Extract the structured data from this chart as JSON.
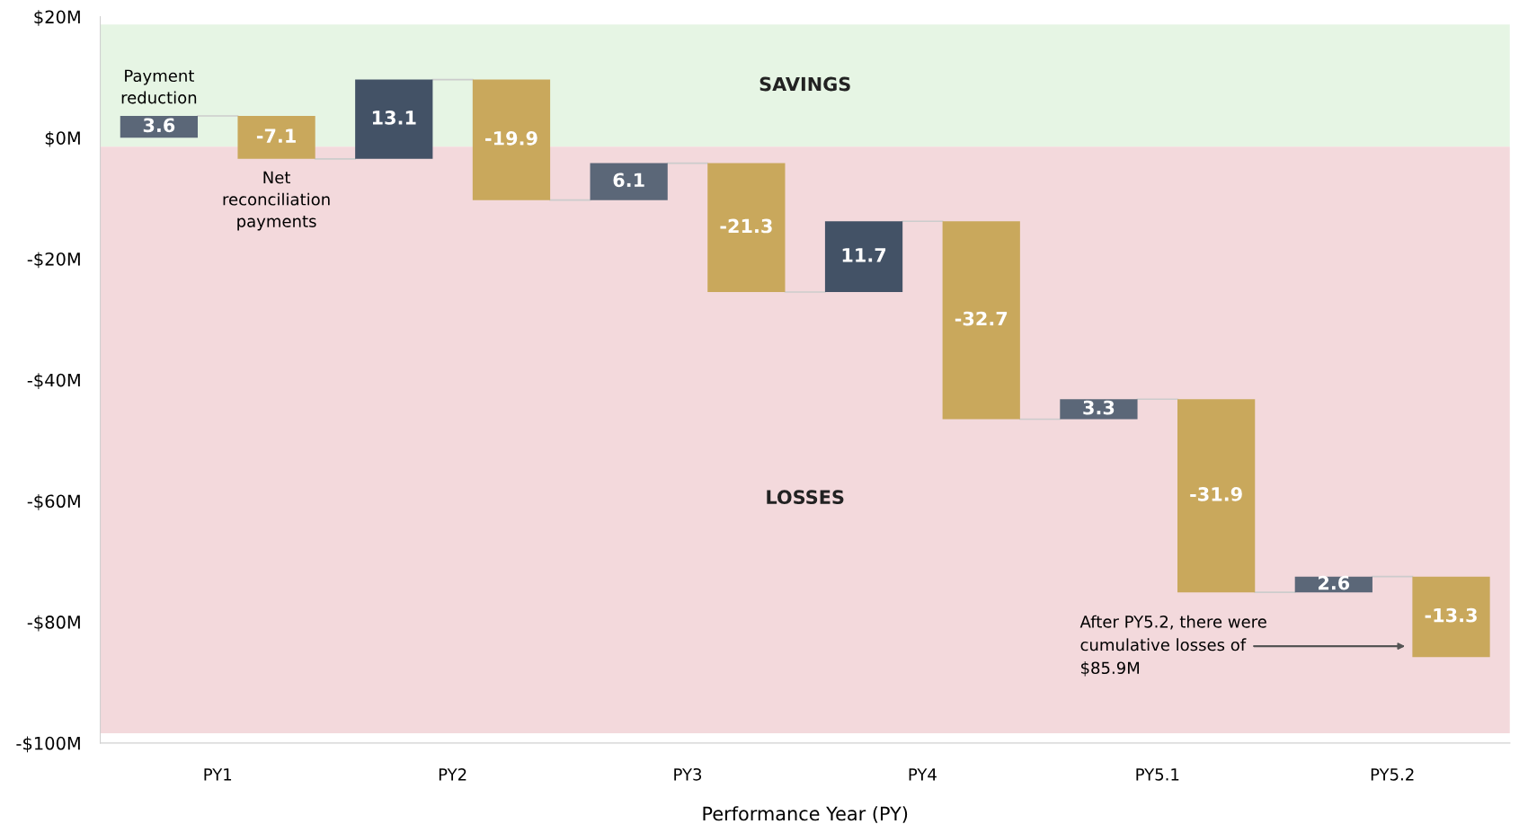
{
  "chart_data": {
    "type": "bar",
    "xlabel": "Performance Year (PY)",
    "categories": [
      "PY1",
      "PY2",
      "PY3",
      "PY4",
      "PY5.1",
      "PY5.2"
    ],
    "series": [
      {
        "name": "Payment reduction",
        "colors": [
          "#5b6778",
          "#435266",
          "#5b6778",
          "#435266",
          "#5b6778",
          "#5b6778"
        ],
        "values": [
          3.6,
          13.1,
          6.1,
          11.7,
          3.3,
          2.6
        ],
        "base": [
          0,
          -3.5,
          -10.3,
          -25.5,
          -46.5,
          -75.1
        ]
      },
      {
        "name": "Net reconciliation payments",
        "color": "#c9a85c",
        "values": [
          -7.1,
          -19.9,
          -21.3,
          -32.7,
          -31.9,
          -13.3
        ],
        "base": [
          3.6,
          9.6,
          -4.2,
          -13.8,
          -43.2,
          -72.5
        ]
      }
    ],
    "data_labels": true,
    "ylim": [
      -100,
      20
    ],
    "yticks": [
      {
        "value": 20,
        "label": "$20M"
      },
      {
        "value": 0,
        "label": "$0M"
      },
      {
        "value": -20,
        "label": "-$20M"
      },
      {
        "value": -40,
        "label": "-$40M"
      },
      {
        "value": -60,
        "label": "-$60M"
      },
      {
        "value": -80,
        "label": "-$80M"
      },
      {
        "value": -100,
        "label": "-$100M"
      }
    ],
    "bands": [
      {
        "axis": "y",
        "from": -1.5,
        "to": 18.7,
        "label": "SAVINGS",
        "color": "#e6f5e4"
      },
      {
        "axis": "y",
        "from": -98.4,
        "to": -1.5,
        "label": "LOSSES",
        "color": "#f3d9dc"
      }
    ],
    "annotations": [
      "After PY5.2, there were cumulative losses of $85.9M"
    ],
    "grid": false,
    "legend": false
  }
}
